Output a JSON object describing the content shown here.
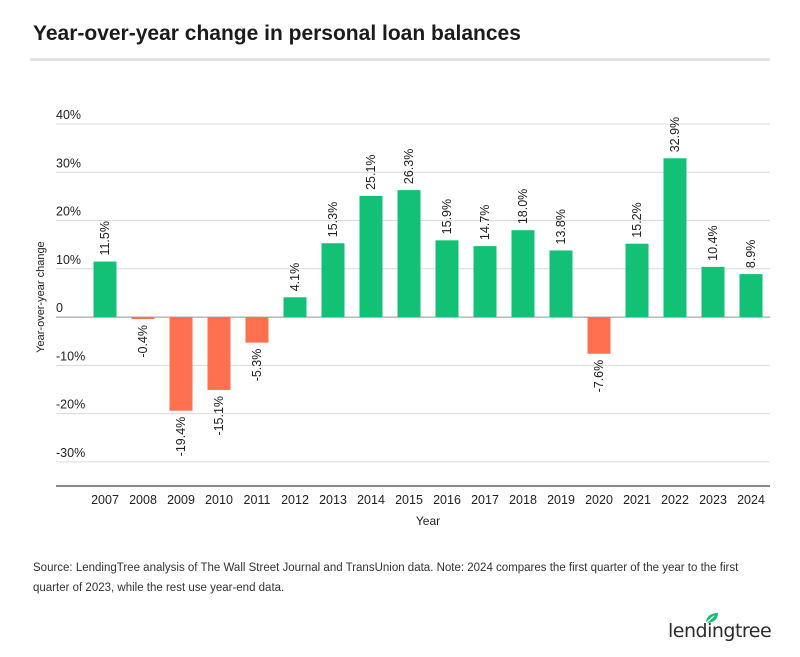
{
  "title": "Year-over-year change in personal loan balances",
  "source": "Source: LendingTree analysis of The Wall Street Journal and TransUnion data. Note: 2024 compares the first quarter of the year to the first quarter of 2023, while the rest use year-end data.",
  "brand": {
    "name": "lendingtree",
    "logo_icon": "leaf-icon"
  },
  "colors": {
    "positive": "#12c176",
    "negative": "#ff7051",
    "grid": "#dcdcdc",
    "axis": "#444444",
    "text": "#222222"
  },
  "chart_data": {
    "type": "bar",
    "title": "Year-over-year change in personal loan balances",
    "xlabel": "Year",
    "ylabel": "Year-over-year change",
    "categories": [
      "2007",
      "2008",
      "2009",
      "2010",
      "2011",
      "2012",
      "2013",
      "2014",
      "2015",
      "2016",
      "2017",
      "2018",
      "2019",
      "2020",
      "2021",
      "2022",
      "2023",
      "2024"
    ],
    "values": [
      11.5,
      -0.4,
      -19.4,
      -15.1,
      -5.3,
      4.1,
      15.3,
      25.1,
      26.3,
      15.9,
      14.7,
      18.0,
      13.8,
      -7.6,
      15.2,
      32.9,
      10.4,
      8.9
    ],
    "data_labels": [
      "11.5%",
      "-0.4%",
      "-19.4%",
      "-15.1%",
      "-5.3%",
      "4.1%",
      "15.3%",
      "25.1%",
      "26.3%",
      "15.9%",
      "14.7%",
      "18.0%",
      "13.8%",
      "-7.6%",
      "15.2%",
      "32.9%",
      "10.4%",
      "8.9%"
    ],
    "ylim": [
      -35,
      40
    ],
    "yticks": [
      40,
      30,
      20,
      10,
      0,
      -10,
      -20,
      -30
    ],
    "ytick_labels": [
      "40%",
      "30%",
      "20%",
      "10%",
      "0",
      "-10%",
      "-20%",
      "-30%"
    ],
    "grid": true,
    "legend": "none"
  }
}
